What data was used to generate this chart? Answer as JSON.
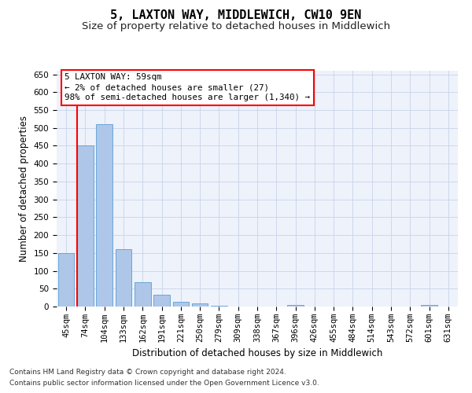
{
  "title": "5, LAXTON WAY, MIDDLEWICH, CW10 9EN",
  "subtitle": "Size of property relative to detached houses in Middlewich",
  "xlabel": "Distribution of detached houses by size in Middlewich",
  "ylabel": "Number of detached properties",
  "footnote1": "Contains HM Land Registry data © Crown copyright and database right 2024.",
  "footnote2": "Contains public sector information licensed under the Open Government Licence v3.0.",
  "annotation_title": "5 LAXTON WAY: 59sqm",
  "annotation_line2": "← 2% of detached houses are smaller (27)",
  "annotation_line3": "98% of semi-detached houses are larger (1,340) →",
  "categories": [
    "45sqm",
    "74sqm",
    "104sqm",
    "133sqm",
    "162sqm",
    "191sqm",
    "221sqm",
    "250sqm",
    "279sqm",
    "309sqm",
    "338sqm",
    "367sqm",
    "396sqm",
    "426sqm",
    "455sqm",
    "484sqm",
    "514sqm",
    "543sqm",
    "572sqm",
    "601sqm",
    "631sqm"
  ],
  "values": [
    150,
    450,
    510,
    160,
    68,
    32,
    13,
    8,
    3,
    0,
    0,
    0,
    5,
    0,
    0,
    0,
    0,
    0,
    0,
    5,
    0
  ],
  "bar_color": "#aec6e8",
  "bar_edge_color": "#5a9fd4",
  "red_line_x": 0.575,
  "ylim": [
    0,
    660
  ],
  "yticks": [
    0,
    50,
    100,
    150,
    200,
    250,
    300,
    350,
    400,
    450,
    500,
    550,
    600,
    650
  ],
  "bg_color": "#eef2fb",
  "grid_color": "#c8d4e8",
  "title_fontsize": 11,
  "subtitle_fontsize": 9.5,
  "axis_label_fontsize": 8.5,
  "tick_fontsize": 7.5,
  "footnote_fontsize": 6.5,
  "annotation_fontsize": 7.8
}
